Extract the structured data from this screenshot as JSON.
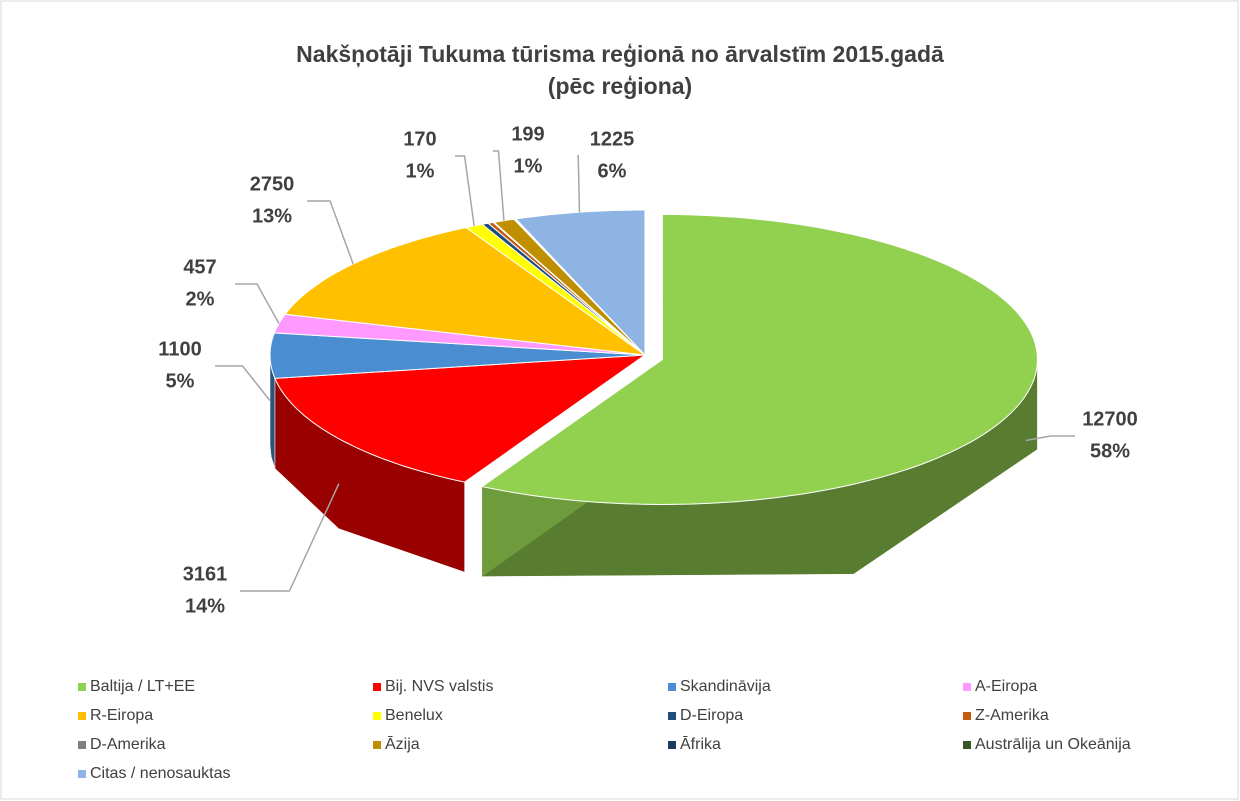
{
  "chart_data": {
    "type": "pie3d",
    "title": "Nakšņotāji Tukuma tūrisma reģionā no ārvalstīm 2015.gadā",
    "subtitle": "(pēc reģiona)",
    "categories": [
      "Baltija / LT+EE",
      "Bij. NVS valstis",
      "Skandināvija",
      "A-Eiropa",
      "R-Eiropa",
      "Benelux",
      "D-Eiropa",
      "Z-Amerika",
      "D-Amerika",
      "Āzija",
      "Āfrika",
      "Austrālija un Okeānija",
      "Citas / nenosauktas"
    ],
    "values": [
      12700,
      3161,
      1100,
      457,
      2750,
      170,
      60,
      50,
      10,
      199,
      10,
      10,
      1225
    ],
    "percent_labels": [
      "58%",
      "14%",
      "5%",
      "2%",
      "13%",
      "1%",
      null,
      null,
      null,
      "1%",
      null,
      null,
      "6%"
    ],
    "colors": [
      "#92d050",
      "#ff0000",
      "#4a8ed1",
      "#ff99ff",
      "#ffc000",
      "#ffff00",
      "#1f4e79",
      "#c55a11",
      "#7f7f7f",
      "#bf8f00",
      "#203864",
      "#375623",
      "#8db4e2"
    ],
    "exploded": 0,
    "legend": "bottom"
  }
}
